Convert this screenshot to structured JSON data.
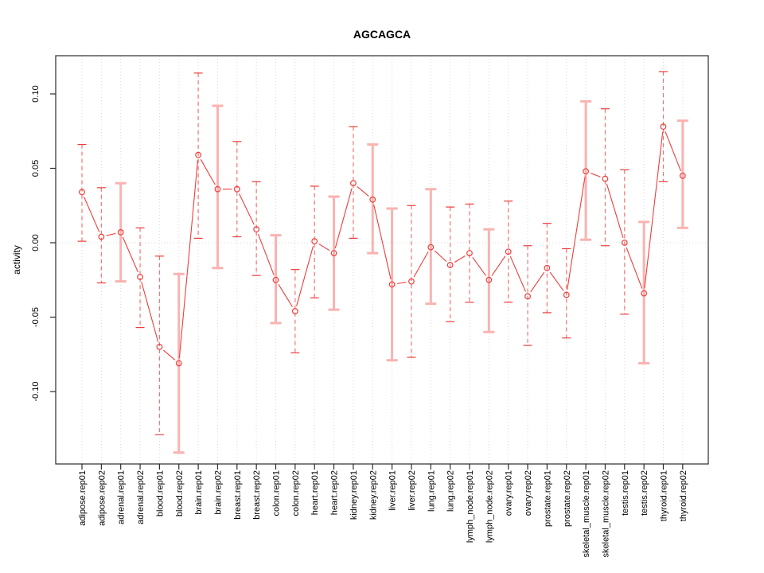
{
  "window": {
    "background": "#ffffff"
  },
  "chart_data": {
    "type": "line",
    "subtype": "points-with-error-bars",
    "title": "AGCAGCA",
    "xlabel": "",
    "ylabel": "activity",
    "legend": "none",
    "grid": {
      "vertical_dotted_per_category": true,
      "dotted_zero_line": true
    },
    "ylim": [
      -0.149,
      0.126
    ],
    "yticks": {
      "values": [
        -0.1,
        -0.05,
        0.0,
        0.05,
        0.1
      ],
      "labels": [
        "-0.10",
        "-0.05",
        "0.00",
        "0.05",
        "0.10"
      ]
    },
    "categories": [
      "adipose.rep01",
      "adipose.rep02",
      "adrenal.rep01",
      "adrenal.rep02",
      "blood.rep01",
      "blood.rep02",
      "brain.rep01",
      "brain.rep02",
      "breast.rep01",
      "breast.rep02",
      "colon.rep01",
      "colon.rep02",
      "heart.rep01",
      "heart.rep02",
      "kidney.rep01",
      "kidney.rep02",
      "liver.rep01",
      "liver.rep02",
      "lung.rep01",
      "lung.rep02",
      "lymph_node.rep01",
      "lymph_node.rep02",
      "ovary.rep01",
      "ovary.rep02",
      "prostate.rep01",
      "prostate.rep02",
      "skeletal_muscle.rep01",
      "skeletal_muscle.rep02",
      "testis.rep01",
      "testis.rep02",
      "thyroid.rep01",
      "thyroid.rep02"
    ],
    "series": [
      {
        "name": "activity",
        "values": [
          0.034,
          0.004,
          0.007,
          -0.023,
          -0.07,
          -0.081,
          0.059,
          0.036,
          0.036,
          0.009,
          -0.025,
          -0.046,
          0.001,
          -0.007,
          0.04,
          0.029,
          -0.028,
          -0.026,
          -0.003,
          -0.015,
          -0.007,
          -0.025,
          -0.006,
          -0.036,
          -0.017,
          -0.035,
          0.048,
          0.043,
          0.0,
          -0.034,
          0.078,
          0.045
        ],
        "ci_low": [
          0.001,
          -0.027,
          -0.026,
          -0.057,
          -0.129,
          -0.141,
          0.003,
          -0.017,
          0.004,
          -0.022,
          -0.054,
          -0.074,
          -0.037,
          -0.045,
          0.003,
          -0.007,
          -0.079,
          -0.077,
          -0.041,
          -0.053,
          -0.04,
          -0.06,
          -0.04,
          -0.069,
          -0.047,
          -0.064,
          0.002,
          -0.002,
          -0.048,
          -0.081,
          0.041,
          0.01
        ],
        "ci_high": [
          0.066,
          0.037,
          0.04,
          0.01,
          -0.009,
          -0.021,
          0.114,
          0.092,
          0.068,
          0.041,
          0.005,
          -0.018,
          0.038,
          0.031,
          0.078,
          0.066,
          0.023,
          0.025,
          0.036,
          0.024,
          0.026,
          0.009,
          0.028,
          -0.002,
          0.013,
          -0.004,
          0.095,
          0.09,
          0.049,
          0.014,
          0.115,
          0.082
        ],
        "error_bar_style": [
          "dashed",
          "dashed",
          "solid",
          "dashed",
          "dashed",
          "solid",
          "dashed",
          "solid",
          "dashed",
          "dashed",
          "solid",
          "dashed",
          "dashed",
          "solid",
          "dashed",
          "solid",
          "solid",
          "dashed",
          "solid",
          "dashed",
          "dashed",
          "solid",
          "dashed",
          "dashed",
          "dashed",
          "dashed",
          "solid",
          "dashed",
          "dashed",
          "solid",
          "dashed",
          "solid"
        ]
      }
    ],
    "colors": {
      "series_red": "#ee3d3a",
      "dashed_bar_red": "#f27672",
      "solid_bar_pink": "#f9b3b1",
      "grid_gray": "#d8d8d8",
      "axis_black": "#2b2b2b",
      "label_black": "#000000",
      "background": "#ffffff"
    },
    "marker": "open-circle"
  }
}
